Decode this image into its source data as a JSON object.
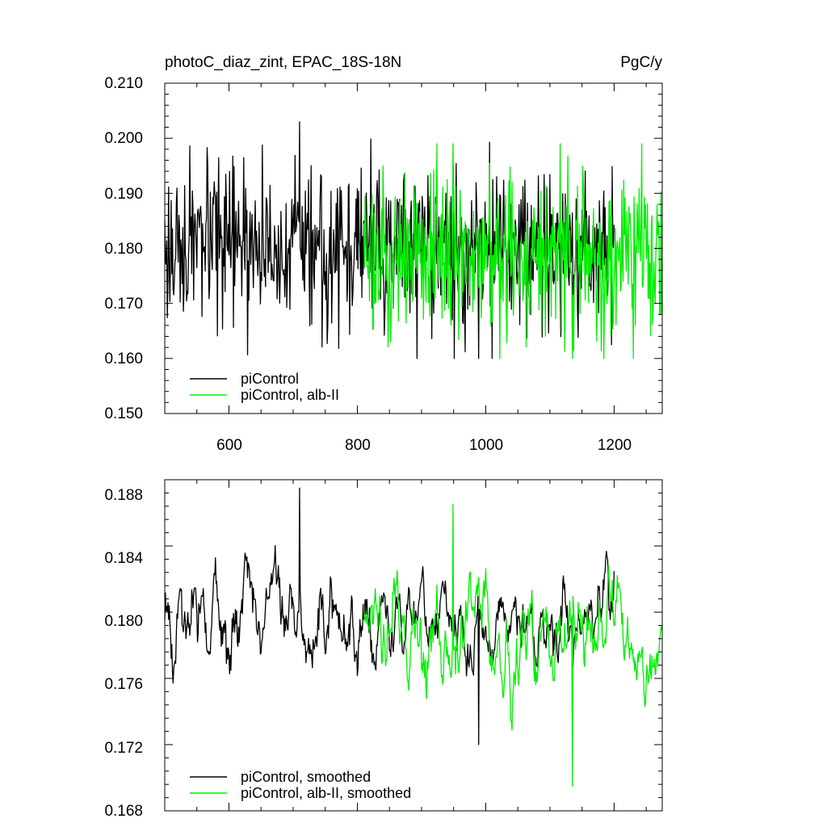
{
  "chart_data": [
    {
      "type": "line",
      "title": "photoC_diaz_zint, EPAC_18S-18N",
      "units": "PgC/y",
      "xlim": [
        500,
        1275
      ],
      "ylim": [
        0.15,
        0.21
      ],
      "x_ticks": [
        "600",
        "800",
        "1000",
        "1200"
      ],
      "y_ticks": [
        "0.150",
        "0.160",
        "0.170",
        "0.180",
        "0.190",
        "0.200",
        "0.210"
      ],
      "grid": false,
      "legend_placement": "bottom-left",
      "series": [
        {
          "name": "piControl",
          "color": "#000000",
          "x_start": 500,
          "x_end": 1200,
          "mean": 0.18,
          "amplitude": 0.007,
          "min": 0.16,
          "max": 0.203
        },
        {
          "name": "piControl, alb-II",
          "color": "#00ee00",
          "x_start": 810,
          "x_end": 1275,
          "mean": 0.179,
          "amplitude": 0.0075,
          "min": 0.16,
          "max": 0.199
        }
      ]
    },
    {
      "type": "line",
      "xlim": [
        500,
        1275
      ],
      "ylim": [
        0.168,
        0.188
      ],
      "y_ticks": [
        "0.168",
        "0.172",
        "0.176",
        "0.180",
        "0.184",
        "0.188"
      ],
      "grid": false,
      "legend_placement": "bottom-left",
      "series": [
        {
          "name": "piControl, smoothed",
          "color": "#000000",
          "x_start": 500,
          "x_end": 1200,
          "mean": 0.1795,
          "amplitude": 0.0022,
          "min": 0.172,
          "max": 0.1875
        },
        {
          "name": "piControl, alb-II, smoothed",
          "color": "#00ee00",
          "x_start": 810,
          "x_end": 1275,
          "mean": 0.1785,
          "amplitude": 0.0025,
          "min": 0.1695,
          "max": 0.1865
        }
      ]
    }
  ]
}
